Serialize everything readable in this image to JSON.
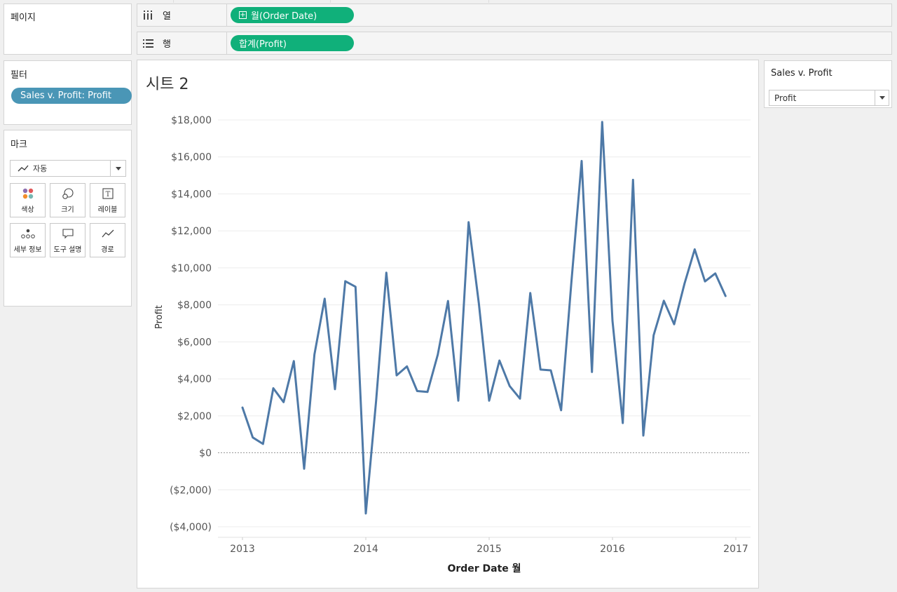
{
  "pages_panel": {
    "title": "페이지"
  },
  "columns_shelf": {
    "label": "열",
    "pill": "월(Order Date)"
  },
  "rows_shelf": {
    "label": "행",
    "pill": "합계(Profit)"
  },
  "filters_panel": {
    "title": "필터",
    "pill": "Sales v. Profit: Profit"
  },
  "marks_panel": {
    "title": "마크",
    "type": "자동",
    "buttons": [
      {
        "label": "색상",
        "icon": "color-icon"
      },
      {
        "label": "크기",
        "icon": "size-icon"
      },
      {
        "label": "레이블",
        "icon": "label-icon"
      },
      {
        "label": "세부 정보",
        "icon": "detail-icon"
      },
      {
        "label": "도구 설명",
        "icon": "tooltip-icon"
      },
      {
        "label": "경로",
        "icon": "path-icon"
      }
    ]
  },
  "sheet": {
    "title": "시트 2"
  },
  "parameter": {
    "title": "Sales v. Profit",
    "value": "Profit"
  },
  "colors": {
    "pill_green": "#10b07a",
    "pill_blue": "#4a96b6",
    "line": "#4e79a7"
  },
  "chart_data": {
    "type": "line",
    "title": "",
    "xlabel": "Order Date 월",
    "ylabel": "Profit",
    "x_ticks": [
      "2013",
      "2014",
      "2015",
      "2016",
      "2017"
    ],
    "y_ticks": [
      "$18,000",
      "$16,000",
      "$14,000",
      "$12,000",
      "$10,000",
      "$8,000",
      "$6,000",
      "$4,000",
      "$2,000",
      "$0",
      "($2,000)",
      "($4,000)"
    ],
    "ylim": [
      -4000,
      18000
    ],
    "xlim": [
      "2013-01",
      "2017-01"
    ],
    "grid": true,
    "zero_line": true,
    "series": [
      {
        "name": "",
        "x": [
          "2013-01",
          "2013-02",
          "2013-03",
          "2013-04",
          "2013-05",
          "2013-06",
          "2013-07",
          "2013-08",
          "2013-09",
          "2013-10",
          "2013-11",
          "2013-12",
          "2014-01",
          "2014-02",
          "2014-03",
          "2014-04",
          "2014-05",
          "2014-06",
          "2014-07",
          "2014-08",
          "2014-09",
          "2014-10",
          "2014-11",
          "2014-12",
          "2015-01",
          "2015-02",
          "2015-03",
          "2015-04",
          "2015-05",
          "2015-06",
          "2015-07",
          "2015-08",
          "2015-09",
          "2015-10",
          "2015-11",
          "2015-12",
          "2016-01",
          "2016-02",
          "2016-03",
          "2016-04",
          "2016-05",
          "2016-06",
          "2016-07",
          "2016-08",
          "2016-09",
          "2016-10",
          "2016-11",
          "2016-12"
        ],
        "values": [
          2450,
          830,
          480,
          3490,
          2740,
          4960,
          -860,
          5320,
          8330,
          3440,
          9280,
          8980,
          -3280,
          2810,
          9740,
          4190,
          4670,
          3340,
          3290,
          5310,
          8210,
          2820,
          12470,
          8080,
          2820,
          4990,
          3610,
          2930,
          8640,
          4500,
          4460,
          2300,
          9200,
          15780,
          4370,
          17890,
          7140,
          1610,
          14760,
          930,
          6350,
          8220,
          6950,
          9140,
          11000,
          9270,
          9700,
          8480
        ]
      }
    ]
  }
}
